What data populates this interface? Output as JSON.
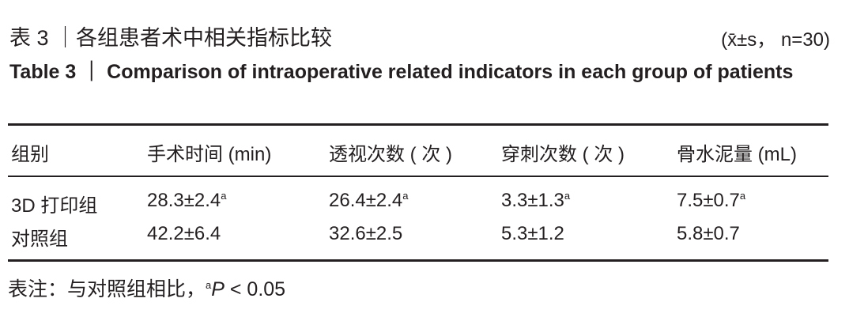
{
  "header": {
    "title": "表 3 ｜各组患者术中相关指标比较",
    "stats": "(x̄±s， n=30)",
    "title_en": "Table 3 ｜ Comparison of intraoperative related indicators in each group of patients"
  },
  "table": {
    "columns": [
      "组别",
      "手术时间 (min)",
      "透视次数 ( 次 )",
      "穿刺次数 ( 次 )",
      "骨水泥量 (mL)"
    ],
    "rows": [
      [
        {
          "text": "3D 打印组"
        },
        {
          "text": "28.3±2.4",
          "sup": "a"
        },
        {
          "text": "26.4±2.4",
          "sup": "a"
        },
        {
          "text": "3.3±1.3",
          "sup": "a"
        },
        {
          "text": "7.5±0.7",
          "sup": "a"
        }
      ],
      [
        {
          "text": "对照组"
        },
        {
          "text": "42.2±6.4"
        },
        {
          "text": "32.6±2.5"
        },
        {
          "text": "5.3±1.2"
        },
        {
          "text": "5.8±0.7"
        }
      ]
    ]
  },
  "note": {
    "prefix": "表注：与对照组相比，",
    "sup": "a",
    "symbol": "P",
    "text": " < 0.05"
  }
}
